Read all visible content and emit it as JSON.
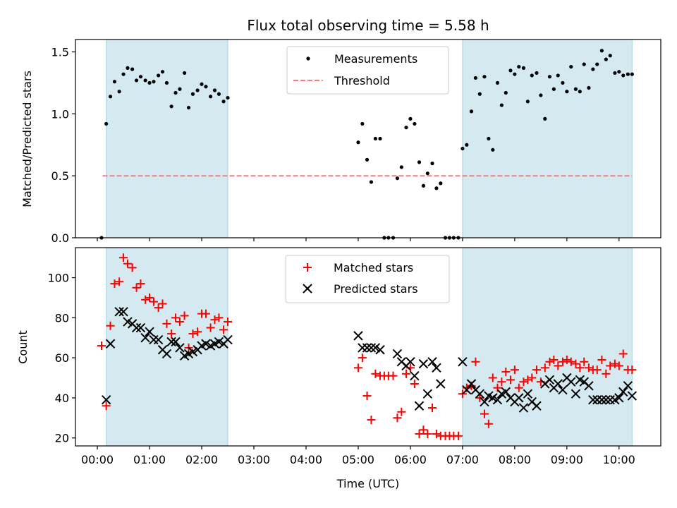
{
  "chart_data": {
    "title": "Flux total observing time = 5.58 h",
    "xlabel": "Time (UTC)",
    "xlim": [
      -0.42,
      10.8
    ],
    "x_ticks": [
      0,
      1,
      2,
      3,
      4,
      5,
      6,
      7,
      8,
      9,
      10
    ],
    "x_tick_labels": [
      "00:00",
      "01:00",
      "02:00",
      "03:00",
      "04:00",
      "05:00",
      "06:00",
      "07:00",
      "08:00",
      "09:00",
      "10:00"
    ],
    "shaded_spans": [
      [
        0.17,
        2.5
      ],
      [
        7.0,
        10.25
      ]
    ],
    "shade_color": "#d4eaf0",
    "top": {
      "type": "scatter",
      "ylabel": "Matched/Predicted stars",
      "ylim": [
        0,
        1.6
      ],
      "y_ticks": [
        0.0,
        0.5,
        1.0,
        1.5
      ],
      "y_tick_labels": [
        "0.0",
        "0.5",
        "1.0",
        "1.5"
      ],
      "threshold": {
        "name": "Threshold",
        "value": 0.5,
        "x_range": [
          0.1,
          10.25
        ],
        "color": "#f08080"
      },
      "legend": {
        "location": "upper center",
        "entries": [
          "Measurements",
          "Threshold"
        ]
      },
      "series": [
        {
          "name": "Measurements",
          "marker": "dot",
          "color": "#000000",
          "x": [
            0.08,
            0.17,
            0.25,
            0.33,
            0.42,
            0.5,
            0.58,
            0.67,
            0.75,
            0.83,
            0.92,
            1.0,
            1.08,
            1.17,
            1.25,
            1.33,
            1.42,
            1.5,
            1.58,
            1.67,
            1.75,
            1.83,
            1.92,
            2.0,
            2.08,
            2.17,
            2.25,
            2.33,
            2.42,
            2.5,
            5.0,
            5.08,
            5.17,
            5.25,
            5.33,
            5.42,
            5.5,
            5.58,
            5.67,
            5.75,
            5.83,
            5.92,
            6.0,
            6.08,
            6.17,
            6.25,
            6.33,
            6.42,
            6.5,
            6.58,
            6.67,
            6.75,
            6.83,
            6.92,
            7.0,
            7.08,
            7.17,
            7.25,
            7.33,
            7.42,
            7.5,
            7.58,
            7.67,
            7.75,
            7.83,
            7.92,
            8.0,
            8.08,
            8.17,
            8.25,
            8.33,
            8.42,
            8.5,
            8.58,
            8.67,
            8.75,
            8.83,
            8.92,
            9.0,
            9.08,
            9.17,
            9.25,
            9.33,
            9.42,
            9.5,
            9.58,
            9.67,
            9.75,
            9.83,
            9.92,
            10.0,
            10.08,
            10.17,
            10.25
          ],
          "y": [
            0.0,
            0.92,
            1.14,
            1.26,
            1.18,
            1.32,
            1.37,
            1.36,
            1.27,
            1.3,
            1.27,
            1.25,
            1.26,
            1.31,
            1.34,
            1.25,
            1.06,
            1.17,
            1.2,
            1.33,
            1.05,
            1.16,
            1.19,
            1.24,
            1.22,
            1.14,
            1.19,
            1.16,
            1.1,
            1.13,
            0.77,
            0.92,
            0.63,
            0.45,
            0.8,
            0.8,
            0.0,
            0.0,
            0.0,
            0.48,
            0.57,
            0.89,
            0.96,
            0.92,
            0.61,
            0.42,
            0.52,
            0.6,
            0.4,
            0.44,
            0.0,
            0.0,
            0.0,
            0.0,
            0.72,
            0.75,
            1.02,
            1.29,
            1.16,
            1.3,
            0.8,
            0.71,
            1.25,
            1.07,
            1.17,
            1.35,
            1.32,
            1.38,
            1.37,
            1.1,
            1.31,
            1.33,
            1.15,
            0.96,
            1.3,
            1.2,
            1.31,
            1.25,
            1.18,
            1.38,
            1.2,
            1.18,
            1.4,
            1.21,
            1.36,
            1.4,
            1.51,
            1.44,
            1.47,
            1.33,
            1.34,
            1.31,
            1.32,
            1.32
          ]
        }
      ]
    },
    "bottom": {
      "type": "scatter",
      "ylabel": "Count",
      "ylim": [
        16,
        115
      ],
      "y_ticks": [
        20,
        40,
        60,
        80,
        100
      ],
      "y_tick_labels": [
        "20",
        "40",
        "60",
        "80",
        "100"
      ],
      "legend": {
        "location": "upper center",
        "entries": [
          "Matched stars",
          "Predicted stars"
        ]
      },
      "series": [
        {
          "name": "Matched stars",
          "marker": "plus",
          "color": "#ff0000",
          "x": [
            0.08,
            0.17,
            0.25,
            0.33,
            0.42,
            0.5,
            0.58,
            0.67,
            0.75,
            0.83,
            0.92,
            1.0,
            1.08,
            1.17,
            1.25,
            1.33,
            1.42,
            1.5,
            1.58,
            1.67,
            1.75,
            1.83,
            1.92,
            2.0,
            2.08,
            2.17,
            2.25,
            2.33,
            2.42,
            2.5,
            5.0,
            5.08,
            5.17,
            5.25,
            5.33,
            5.42,
            5.5,
            5.58,
            5.67,
            5.75,
            5.83,
            5.92,
            6.0,
            6.08,
            6.17,
            6.25,
            6.33,
            6.42,
            6.5,
            6.58,
            6.67,
            6.75,
            6.83,
            6.92,
            7.0,
            7.08,
            7.17,
            7.25,
            7.33,
            7.42,
            7.5,
            7.58,
            7.67,
            7.75,
            7.83,
            7.92,
            8.0,
            8.08,
            8.17,
            8.25,
            8.33,
            8.42,
            8.5,
            8.58,
            8.67,
            8.75,
            8.83,
            8.92,
            9.0,
            9.08,
            9.17,
            9.25,
            9.33,
            9.42,
            9.5,
            9.58,
            9.67,
            9.75,
            9.83,
            9.92,
            10.0,
            10.08,
            10.17,
            10.25
          ],
          "y": [
            66,
            36,
            76,
            97,
            98,
            110,
            107,
            105,
            95,
            97,
            89,
            90,
            88,
            85,
            87,
            77,
            72,
            80,
            78,
            81,
            65,
            72,
            73,
            82,
            82,
            75,
            79,
            80,
            74,
            78,
            55,
            60,
            41,
            29,
            52,
            51,
            51,
            51,
            51,
            30,
            33,
            52,
            55,
            47,
            22,
            24,
            22,
            35,
            22,
            21,
            21,
            21,
            21,
            21,
            42,
            45,
            46,
            58,
            40,
            32,
            27,
            50,
            45,
            48,
            53,
            49,
            54,
            45,
            48,
            49,
            50,
            54,
            48,
            55,
            58,
            59,
            56,
            58,
            59,
            58,
            57,
            55,
            58,
            55,
            54,
            54,
            59,
            52,
            56,
            57,
            56,
            62,
            54,
            54
          ]
        },
        {
          "name": "Predicted stars",
          "marker": "x",
          "color": "#000000",
          "x": [
            0.17,
            0.25,
            0.42,
            0.5,
            0.58,
            0.67,
            0.75,
            0.83,
            0.92,
            1.0,
            1.08,
            1.17,
            1.25,
            1.33,
            1.42,
            1.5,
            1.58,
            1.67,
            1.75,
            1.83,
            1.92,
            2.0,
            2.08,
            2.17,
            2.25,
            2.33,
            2.42,
            2.5,
            5.0,
            5.08,
            5.17,
            5.25,
            5.33,
            5.42,
            5.75,
            5.83,
            5.92,
            6.0,
            6.08,
            6.17,
            6.25,
            6.33,
            6.42,
            6.5,
            6.58,
            7.0,
            7.08,
            7.17,
            7.25,
            7.33,
            7.42,
            7.5,
            7.58,
            7.67,
            7.75,
            7.83,
            7.92,
            8.0,
            8.08,
            8.17,
            8.25,
            8.33,
            8.42,
            8.58,
            8.67,
            8.75,
            8.83,
            8.92,
            9.0,
            9.08,
            9.17,
            9.25,
            9.33,
            9.42,
            9.5,
            9.58,
            9.67,
            9.75,
            9.83,
            9.92,
            10.0,
            10.08,
            10.17,
            10.25
          ],
          "y": [
            39,
            67,
            83,
            83,
            78,
            77,
            75,
            75,
            70,
            73,
            69,
            69,
            64,
            62,
            68,
            68,
            65,
            61,
            62,
            63,
            64,
            66,
            67,
            66,
            67,
            68,
            67,
            69,
            71,
            65,
            65,
            65,
            65,
            64,
            62,
            58,
            56,
            58,
            51,
            36,
            57,
            42,
            58,
            55,
            47,
            58,
            44,
            47,
            44,
            42,
            38,
            41,
            40,
            39,
            42,
            43,
            40,
            38,
            40,
            35,
            42,
            38,
            36,
            47,
            49,
            45,
            47,
            44,
            50,
            48,
            42,
            49,
            48,
            46,
            39,
            39,
            39,
            39,
            39,
            39,
            40,
            43,
            46,
            41
          ]
        }
      ]
    }
  }
}
